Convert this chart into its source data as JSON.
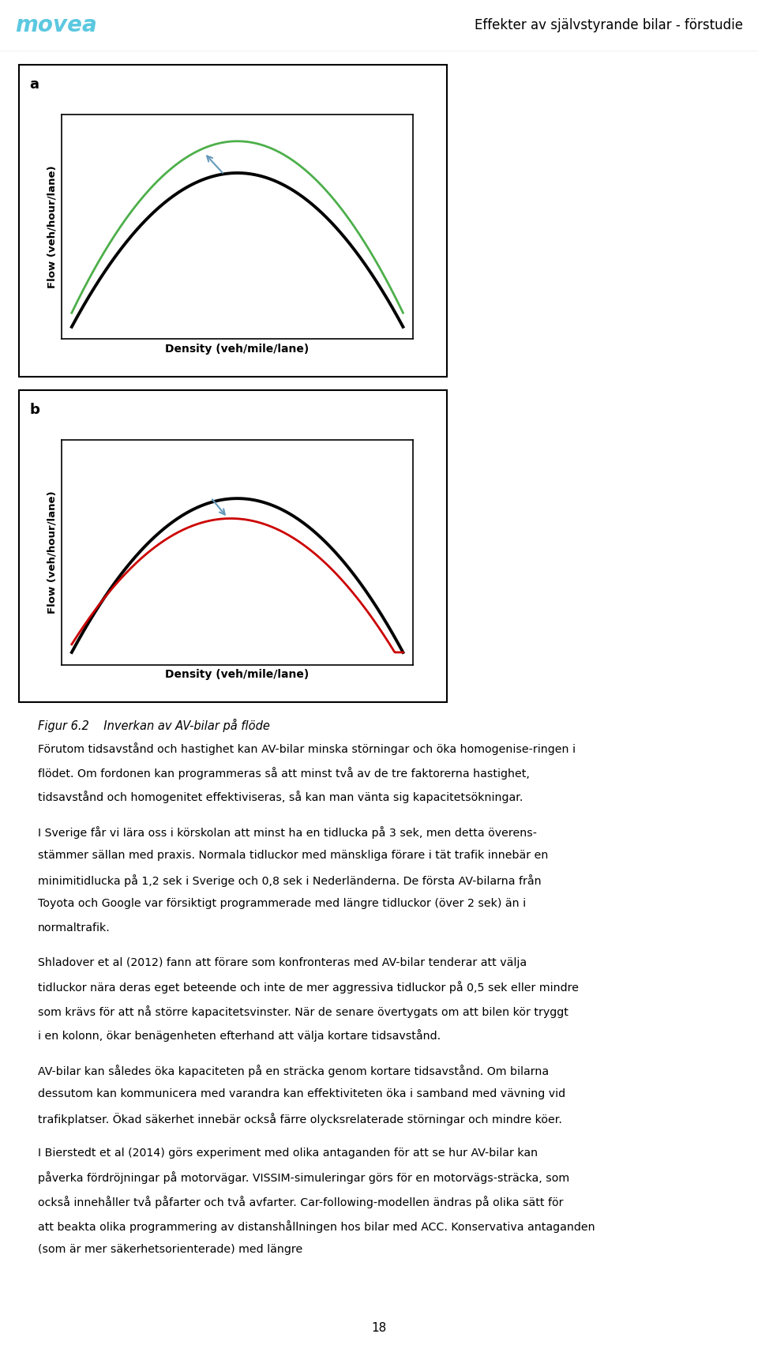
{
  "header_left": "movea",
  "header_right": "Effekter av självstyrande bilar - förstudie",
  "header_color": "#5bc8e0",
  "fig_label_a": "a",
  "fig_label_b": "b",
  "xlabel": "Density (veh/mile/lane)",
  "ylabel": "Flow (veh/hour/lane)",
  "black_line_color": "#000000",
  "green_line_color": "#4daf4a",
  "red_line_color": "#cc0000",
  "arrow_color": "#6699bb",
  "fig_caption_title": "Figur 6.2    Inverkan av AV-bilar på flöde",
  "body_paragraphs": [
    "Förutom tidsavstånd och hastighet kan AV-bilar minska störningar och öka homogenise-ringen i flödet. Om fordonen kan programmeras så att minst två av de tre faktorerna hastighet, tidsavstånd och homogenitet effektiviseras, så kan man vänta sig kapacitetsökningar.",
    "I Sverige får vi lära oss i körskolan att minst ha en tidlucka på 3 sek, men detta överens-stämmer sällan med praxis. Normala tidluckor med mänskliga förare i tät trafik innebär en minimitidlucka på 1,2 sek i Sverige och 0,8 sek i Nederländerna. De första AV-bilarna från Toyota och Google var försiktigt programmerade med längre tidluckor (över 2 sek) än i normaltrafik.",
    "Shladover et al (2012) fann att förare som konfronteras med AV-bilar tenderar att välja tidluckor nära deras eget beteende och inte de mer aggressiva tidluckor på 0,5 sek eller mindre som krävs för att nå större kapacitetsvinster. När de senare övertygats om att bilen kör tryggt i en kolonn, ökar benägenheten efterhand att välja kortare tidsavstånd.",
    "AV-bilar kan således öka kapaciteten på en sträcka genom kortare tidsavstånd. Om bilarna dessutom kan kommunicera med varandra kan effektiviteten öka i samband med vävning vid trafikplatser. Ökad säkerhet innebär också färre olycksrelaterade störningar och mindre köer.",
    "I Bierstedt et al (2014) görs experiment med olika antaganden för att se hur AV-bilar kan påverka fördröjningar på motorvägar. VISSIM-simuleringar görs för en motorvägs-sträcka, som också innehåller två påfarter och två avfarter. Car-following-modellen ändras på olika sätt för att beakta olika programmering av distanshållningen hos bilar med ACC. Konservativa antaganden (som är mer säkerhetsorienterade) med längre"
  ],
  "page_number": "18",
  "lw_black": 2.8,
  "lw_colored": 2.0,
  "chart_border_lw": 1.5
}
